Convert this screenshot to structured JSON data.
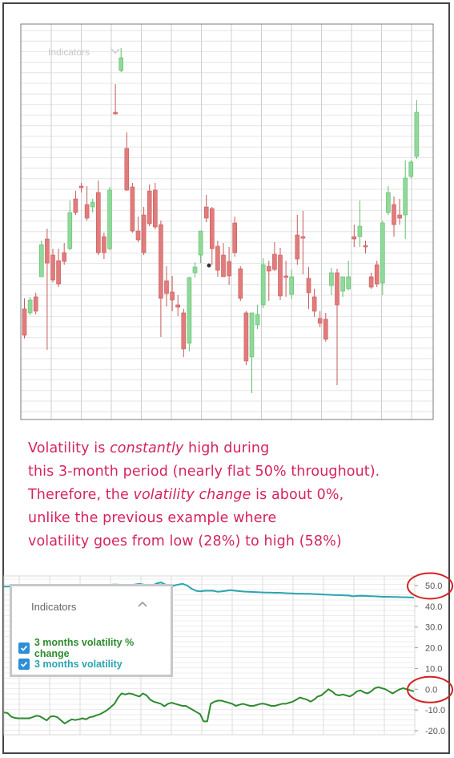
{
  "upper_chart": {
    "faint_menu_label": "Indicators",
    "colors": {
      "up": "#8fd99a",
      "up_stroke": "#5fbf6d",
      "down": "#e27c7c",
      "down_stroke": "#c95a5a",
      "grid": "#e4e4e4"
    }
  },
  "annotation": {
    "line1_a": "Volatility is ",
    "line1_em": "constantly",
    "line1_b": " high during",
    "line2": "this 3-month period (nearly flat 50% throughout).",
    "line3_a": "Therefore, the ",
    "line3_em": "volatility change",
    "line3_b": " is about 0%,",
    "line4": "unlike the previous example where",
    "line5": "volatility goes from low (28%) to high (58%)"
  },
  "indicators_panel": {
    "title": "Indicators",
    "items": [
      {
        "label": "3 months volatility % change",
        "color": "#2e8b2e",
        "checked": true
      },
      {
        "label": "3 months volatility",
        "color": "#2aa5b0",
        "checked": true
      }
    ]
  },
  "chart_data": [
    {
      "type": "candlestick",
      "title": "",
      "series": [
        {
          "name": "price",
          "values": [
            {
              "o": 385,
              "h": 372,
              "l": 422,
              "c": 418
            },
            {
              "o": 390,
              "h": 370,
              "l": 393,
              "c": 374
            },
            {
              "o": 370,
              "h": 365,
              "l": 392,
              "c": 388
            },
            {
              "o": 345,
              "h": 300,
              "l": 345,
              "c": 305
            },
            {
              "o": 298,
              "h": 285,
              "l": 436,
              "c": 328
            },
            {
              "o": 318,
              "h": 310,
              "l": 352,
              "c": 349
            },
            {
              "o": 325,
              "h": 310,
              "l": 358,
              "c": 354
            },
            {
              "o": 315,
              "h": 303,
              "l": 330,
              "c": 326
            },
            {
              "o": 310,
              "h": 250,
              "l": 312,
              "c": 265
            },
            {
              "o": 248,
              "h": 238,
              "l": 268,
              "c": 265
            },
            {
              "o": 232,
              "h": 228,
              "l": 240,
              "c": 232
            },
            {
              "o": 255,
              "h": 232,
              "l": 275,
              "c": 272
            },
            {
              "o": 258,
              "h": 248,
              "l": 265,
              "c": 252
            },
            {
              "o": 240,
              "h": 225,
              "l": 318,
              "c": 315
            },
            {
              "o": 295,
              "h": 290,
              "l": 323,
              "c": 315
            },
            {
              "o": 310,
              "h": 233,
              "l": 312,
              "c": 237
            },
            {
              "o": 140,
              "h": 105,
              "l": 143,
              "c": 142
            },
            {
              "o": 88,
              "h": 60,
              "l": 90,
              "c": 72
            },
            {
              "o": 185,
              "h": 165,
              "l": 238,
              "c": 237
            },
            {
              "o": 233,
              "h": 228,
              "l": 290,
              "c": 288
            },
            {
              "o": 288,
              "h": 270,
              "l": 302,
              "c": 299
            },
            {
              "o": 268,
              "h": 258,
              "l": 318,
              "c": 315
            },
            {
              "o": 238,
              "h": 230,
              "l": 282,
              "c": 279
            },
            {
              "o": 237,
              "h": 228,
              "l": 286,
              "c": 283
            },
            {
              "o": 280,
              "h": 275,
              "l": 420,
              "c": 372
            },
            {
              "o": 350,
              "h": 332,
              "l": 382,
              "c": 366
            },
            {
              "o": 364,
              "h": 344,
              "l": 388,
              "c": 374
            },
            {
              "o": 380,
              "h": 368,
              "l": 394,
              "c": 383
            },
            {
              "o": 390,
              "h": 385,
              "l": 445,
              "c": 435
            },
            {
              "o": 428,
              "h": 345,
              "l": 438,
              "c": 346
            },
            {
              "o": 340,
              "h": 327,
              "l": 346,
              "c": 333
            },
            {
              "o": 318,
              "h": 288,
              "l": 328,
              "c": 288
            },
            {
              "o": 258,
              "h": 243,
              "l": 277,
              "c": 272
            },
            {
              "o": 260,
              "h": 258,
              "l": 330,
              "c": 310
            },
            {
              "o": 307,
              "h": 300,
              "l": 345,
              "c": 337
            },
            {
              "o": 318,
              "h": 303,
              "l": 345,
              "c": 345
            },
            {
              "o": 326,
              "h": 308,
              "l": 355,
              "c": 344
            },
            {
              "o": 278,
              "h": 270,
              "l": 320,
              "c": 315
            },
            {
              "o": 335,
              "h": 332,
              "l": 375,
              "c": 372
            },
            {
              "o": 390,
              "h": 388,
              "l": 455,
              "c": 450
            },
            {
              "o": 445,
              "h": 440,
              "l": 490,
              "c": 390
            },
            {
              "o": 405,
              "h": 380,
              "l": 410,
              "c": 392
            },
            {
              "o": 380,
              "h": 322,
              "l": 384,
              "c": 330
            },
            {
              "o": 332,
              "h": 325,
              "l": 375,
              "c": 338
            },
            {
              "o": 317,
              "h": 302,
              "l": 338,
              "c": 336
            },
            {
              "o": 318,
              "h": 309,
              "l": 374,
              "c": 369
            },
            {
              "o": 344,
              "h": 325,
              "l": 370,
              "c": 344
            },
            {
              "o": 367,
              "h": 336,
              "l": 373,
              "c": 345
            },
            {
              "o": 293,
              "h": 268,
              "l": 330,
              "c": 323
            },
            {
              "o": 295,
              "h": 263,
              "l": 342,
              "c": 297
            },
            {
              "o": 347,
              "h": 333,
              "l": 385,
              "c": 365
            },
            {
              "o": 370,
              "h": 360,
              "l": 395,
              "c": 388
            },
            {
              "o": 397,
              "h": 388,
              "l": 408,
              "c": 403
            },
            {
              "o": 398,
              "h": 390,
              "l": 426,
              "c": 423
            },
            {
              "o": 356,
              "h": 334,
              "l": 368,
              "c": 340
            },
            {
              "o": 340,
              "h": 335,
              "l": 480,
              "c": 380
            },
            {
              "o": 363,
              "h": 345,
              "l": 370,
              "c": 345
            },
            {
              "o": 360,
              "h": 325,
              "l": 362,
              "c": 345
            },
            {
              "o": 295,
              "h": 280,
              "l": 308,
              "c": 298
            },
            {
              "o": 295,
              "h": 250,
              "l": 308,
              "c": 282
            },
            {
              "o": 306,
              "h": 300,
              "l": 316,
              "c": 307
            },
            {
              "o": 345,
              "h": 340,
              "l": 360,
              "c": 358
            },
            {
              "o": 330,
              "h": 325,
              "l": 358,
              "c": 354
            },
            {
              "o": 353,
              "h": 275,
              "l": 368,
              "c": 278
            },
            {
              "o": 265,
              "h": 232,
              "l": 268,
              "c": 240
            },
            {
              "o": 255,
              "h": 245,
              "l": 295,
              "c": 280
            },
            {
              "o": 268,
              "h": 248,
              "l": 280,
              "c": 272
            },
            {
              "o": 268,
              "h": 200,
              "l": 298,
              "c": 222
            },
            {
              "o": 220,
              "h": 200,
              "l": 222,
              "c": 202
            },
            {
              "o": 195,
              "h": 125,
              "l": 198,
              "c": 140
            }
          ]
        }
      ]
    },
    {
      "type": "line",
      "title": "",
      "ylim": [
        -20,
        55
      ],
      "y_ticks": [
        "50.0",
        "40.0",
        "30.0",
        "20.0",
        "10.0",
        "0.0",
        "-10.0",
        "-20.0"
      ],
      "series": [
        {
          "name": "3 months volatility",
          "color": "#2aa5b0",
          "values": [
            49.5,
            49.5,
            49.8,
            49.5,
            49.5,
            49.5,
            49.0,
            49.2,
            49.5,
            49.5,
            49.8,
            49.5,
            49.5,
            49.5,
            49.5,
            49.2,
            49.2,
            49.5,
            49.5,
            49.5,
            49.5,
            49.5,
            50.2,
            50.0,
            50.2,
            50.5,
            50.5,
            50.2,
            50.0,
            50.2,
            50.5,
            50.8,
            50.5,
            50.2,
            50.0,
            51.0,
            51.5,
            50.5,
            49.5,
            50.0,
            50.5,
            50.8,
            50.0,
            48.5,
            47.5,
            47.2,
            47.5,
            47.5,
            47.5,
            47.0,
            47.2,
            47.5,
            47.8,
            47.5,
            47.3,
            47.1,
            47.0,
            46.9,
            46.8,
            46.7,
            46.6,
            46.6,
            46.5,
            46.5,
            46.4,
            46.3,
            46.2,
            46.1,
            46.1,
            46.0,
            46.0,
            45.9,
            45.8,
            45.7,
            45.6,
            45.5,
            45.4,
            45.4,
            45.3,
            45.2,
            44.8,
            45.0,
            45.1,
            45.0,
            44.9,
            44.8,
            44.7,
            44.6,
            44.6,
            44.5,
            44.5,
            44.4,
            44.4,
            44.3,
            44.2
          ]
        },
        {
          "name": "3 months volatility % change",
          "color": "#2e8b2e",
          "values": [
            -11.2,
            -11.5,
            -13.2,
            -13.8,
            -14.0,
            -14.0,
            -14.0,
            -14.0,
            -13.5,
            -12.8,
            -13.0,
            -14.0,
            -15.0,
            -13.2,
            -13.0,
            -13.5,
            -15.0,
            -16.5,
            -15.5,
            -14.5,
            -14.8,
            -14.5,
            -14.0,
            -14.5,
            -13.5,
            -13.2,
            -12.5,
            -12.0,
            -11.0,
            -10.0,
            -8.5,
            -7.0,
            -4.0,
            -2.0,
            -2.5,
            -2.0,
            -2.3,
            -3.0,
            -3.5,
            -2.0,
            -3.0,
            -5.0,
            -6.0,
            -6.5,
            -7.0,
            -8.2,
            -7.0,
            -6.5,
            -7.0,
            -7.5,
            -8.0,
            -8.0,
            -9.0,
            -10.0,
            -11.0,
            -12.0,
            -15.5,
            -15.5,
            -7.0,
            -6.0,
            -5.5,
            -5.5,
            -6.0,
            -6.5,
            -7.0,
            -8.0,
            -7.5,
            -7.0,
            -7.5,
            -8.0,
            -8.0,
            -7.5,
            -7.0,
            -7.0,
            -7.5,
            -8.0,
            -8.0,
            -7.5,
            -7.0,
            -7.0,
            -6.5,
            -6.0,
            -5.0,
            -4.0,
            -4.5,
            -5.0,
            -6.0,
            -5.0,
            -3.5,
            -3.0,
            -1.5,
            0.0,
            -1.0,
            -2.5,
            -3.0,
            -2.5,
            -3.0,
            -3.5,
            -2.5,
            -1.0,
            -0.5,
            -1.5,
            -2.0,
            -1.0,
            0.5,
            1.0,
            0.5,
            0.0,
            -1.0,
            -2.0,
            -1.0,
            0.0,
            0.5,
            0.0,
            -0.5,
            -1.0
          ]
        }
      ]
    }
  ],
  "highlights": {
    "circle_color": "#d42020",
    "circled_ticks": [
      "50.0",
      "0.0"
    ]
  }
}
